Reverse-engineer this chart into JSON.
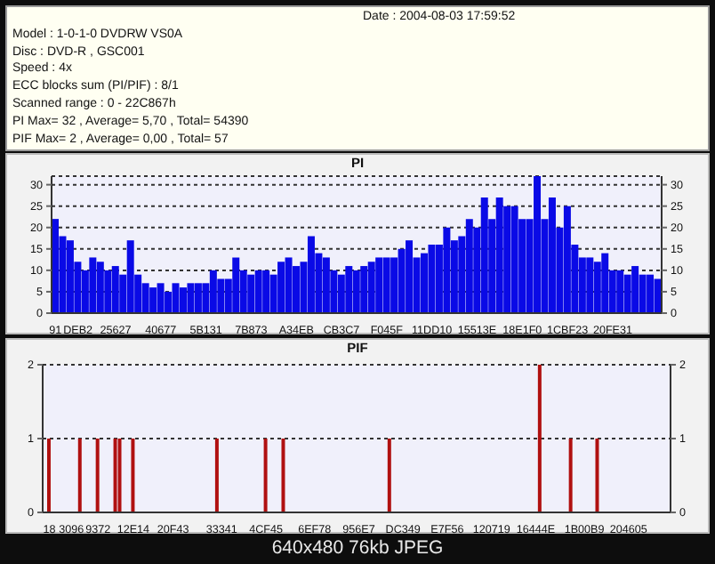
{
  "chart_data": [
    {
      "type": "bar",
      "title": "PI",
      "annotations": [
        "Date : 2004-08-03 17:59:52",
        "Model : 1-0-1-0 DVDRW VS0A",
        "Disc : DVD-R , GSC001",
        "Speed : 4x",
        "ECC blocks sum (PI/PIF) : 8/1",
        "Scanned range : 0 - 22C867h",
        "PI Max= 32 , Average= 5,70 , Total= 54390",
        "PIF Max= 2 , Average= 0,00 , Total= 57"
      ],
      "categories": [
        "91",
        null,
        null,
        "DEB2",
        null,
        null,
        null,
        null,
        "25627",
        null,
        null,
        null,
        null,
        null,
        "40677",
        null,
        null,
        null,
        null,
        null,
        "5B131",
        null,
        null,
        null,
        null,
        null,
        "7B873",
        null,
        null,
        null,
        null,
        null,
        "A34EB",
        null,
        null,
        null,
        null,
        null,
        "CB3C7",
        null,
        null,
        null,
        null,
        null,
        "F045F",
        null,
        null,
        null,
        null,
        null,
        "11DD10",
        null,
        null,
        null,
        null,
        null,
        "15513E",
        null,
        null,
        null,
        null,
        null,
        "18E1F0",
        null,
        null,
        null,
        null,
        null,
        "1CBF23",
        null,
        null,
        null,
        null,
        null,
        "20FE31",
        null,
        null,
        null,
        null,
        null,
        null
      ],
      "values": [
        22,
        18,
        17,
        12,
        10,
        13,
        12,
        10,
        11,
        9,
        17,
        9,
        7,
        6,
        7,
        5,
        7,
        6,
        7,
        7,
        7,
        10,
        8,
        8,
        13,
        10,
        9,
        10,
        10,
        9,
        12,
        13,
        11,
        12,
        18,
        14,
        13,
        10,
        9,
        11,
        10,
        11,
        12,
        13,
        13,
        13,
        15,
        17,
        13,
        14,
        16,
        16,
        20,
        17,
        18,
        22,
        20,
        27,
        22,
        27,
        25,
        25,
        22,
        22,
        32,
        22,
        27,
        20,
        25,
        16,
        13,
        13,
        12,
        14,
        10,
        10,
        9,
        11,
        9,
        9,
        8
      ],
      "color": "#0a0ae6",
      "ylim": [
        0,
        32
      ],
      "yticks": [
        0,
        5,
        10,
        15,
        20,
        25,
        30
      ],
      "y2lim": [
        0,
        32
      ],
      "y2ticks": [
        0,
        5,
        10,
        15,
        20,
        25,
        30
      ],
      "grid": "y"
    },
    {
      "type": "bar",
      "title": "PIF",
      "annotations": [
        "640x480 76kb JPEG"
      ],
      "categories": [
        null,
        "18",
        null,
        null,
        null,
        null,
        "3096",
        null,
        null,
        null,
        null,
        null,
        "9372",
        null,
        null,
        null,
        null,
        null,
        null,
        null,
        "12E14",
        null,
        null,
        null,
        null,
        null,
        null,
        null,
        null,
        "20F43",
        null,
        null,
        null,
        null,
        null,
        null,
        null,
        null,
        null,
        null,
        "33341",
        null,
        null,
        null,
        null,
        null,
        null,
        null,
        null,
        null,
        "4CF45",
        null,
        null,
        null,
        null,
        null,
        null,
        null,
        null,
        null,
        null,
        "6EF78",
        null,
        null,
        null,
        null,
        null,
        null,
        null,
        null,
        null,
        "956E7",
        null,
        null,
        null,
        null,
        null,
        null,
        null,
        null,
        null,
        "DC349",
        null,
        null,
        null,
        null,
        null,
        null,
        null,
        null,
        null,
        "E7F56",
        null,
        null,
        null,
        null,
        null,
        null,
        null,
        null,
        null,
        "120719",
        null,
        null,
        null,
        null,
        null,
        null,
        null,
        null,
        null,
        "16444E",
        null,
        null,
        null,
        null,
        null,
        null,
        null,
        null,
        null,
        null,
        "1B00B9",
        null,
        null,
        null,
        null,
        null,
        null,
        null,
        null,
        null,
        "204605",
        null,
        null,
        null,
        null,
        null,
        null,
        null,
        null,
        null
      ],
      "values": [
        0,
        1,
        0,
        0,
        0,
        0,
        0,
        0,
        1,
        0,
        0,
        0,
        1,
        0,
        0,
        0,
        1,
        1,
        0,
        0,
        1,
        0,
        0,
        0,
        0,
        0,
        0,
        0,
        0,
        0,
        0,
        0,
        0,
        0,
        0,
        0,
        0,
        0,
        0,
        1,
        0,
        0,
        0,
        0,
        0,
        0,
        0,
        0,
        0,
        0,
        1,
        0,
        0,
        0,
        1,
        0,
        0,
        0,
        0,
        0,
        0,
        0,
        0,
        0,
        0,
        0,
        0,
        0,
        0,
        0,
        0,
        0,
        0,
        0,
        0,
        0,
        0,
        0,
        1,
        0,
        0,
        0,
        0,
        0,
        0,
        0,
        0,
        0,
        0,
        0,
        0,
        0,
        0,
        0,
        0,
        0,
        0,
        0,
        0,
        0,
        0,
        0,
        0,
        0,
        0,
        0,
        0,
        0,
        0,
        0,
        0,
        0,
        2,
        0,
        0,
        0,
        0,
        0,
        0,
        1,
        0,
        0,
        0,
        0,
        0,
        1,
        0,
        0,
        0,
        0,
        0,
        0,
        0,
        0,
        0,
        0,
        0,
        0,
        0,
        0,
        0,
        0
      ],
      "color": "#b01010",
      "ylim": [
        0,
        2
      ],
      "yticks": [
        0,
        1,
        2
      ],
      "y2lim": [
        0,
        2
      ],
      "y2ticks": [
        0,
        1,
        2
      ],
      "grid": "y"
    }
  ]
}
